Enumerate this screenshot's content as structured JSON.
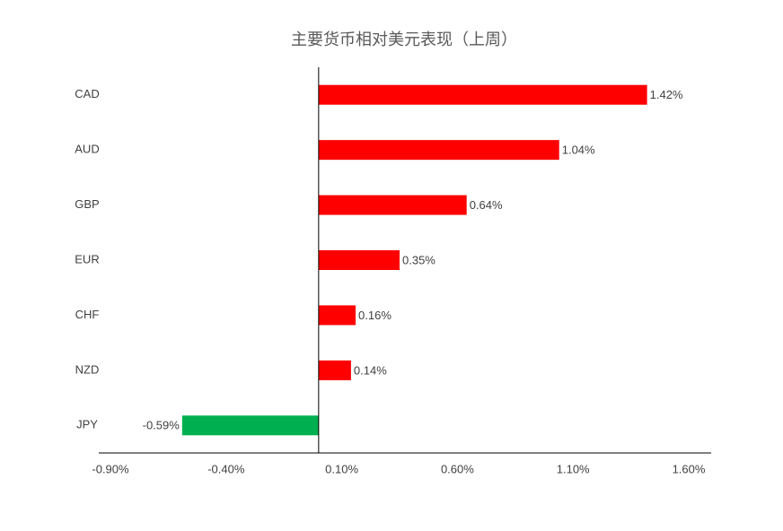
{
  "chart_data": {
    "type": "hbar",
    "title": "主要货币相对美元表现（上周）",
    "categories": [
      "CAD",
      "AUD",
      "GBP",
      "EUR",
      "CHF",
      "NZD",
      "JPY"
    ],
    "values": [
      1.42,
      1.04,
      0.64,
      0.35,
      0.16,
      0.14,
      -0.59
    ],
    "value_labels": [
      "1.42%",
      "1.04%",
      "0.64%",
      "0.35%",
      "0.16%",
      "0.14%",
      "-0.59%"
    ],
    "colors": [
      "#ff0000",
      "#ff0000",
      "#ff0000",
      "#ff0000",
      "#ff0000",
      "#ff0000",
      "#00b050"
    ],
    "xlim": [
      -0.9,
      1.6
    ],
    "xticks": [
      {
        "value": -0.9,
        "label": "-0.90%"
      },
      {
        "value": -0.4,
        "label": "-0.40%"
      },
      {
        "value": 0.1,
        "label": "0.10%"
      },
      {
        "value": 0.6,
        "label": "0.60%"
      },
      {
        "value": 1.1,
        "label": "1.10%"
      },
      {
        "value": 1.6,
        "label": "1.60%"
      }
    ],
    "grid": false
  }
}
